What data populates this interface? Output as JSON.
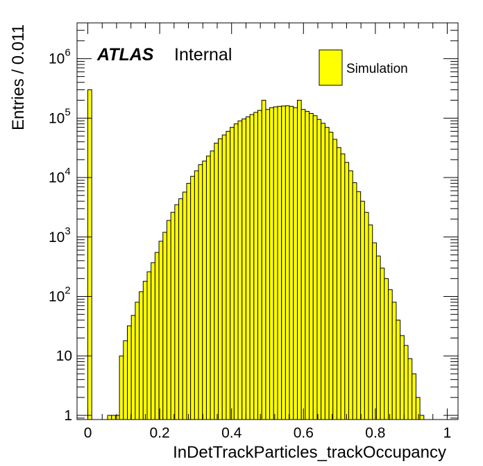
{
  "chart_data": {
    "type": "bar",
    "xlabel": "InDetTrackParticles_trackOccupancy",
    "ylabel": "Entries / 0.011",
    "xlim": [
      -0.03,
      1.03
    ],
    "ylim": [
      0.85,
      4000000
    ],
    "yscale": "log",
    "grid": false,
    "legend_position": "top-right",
    "experiment_label": "ATLAS",
    "experiment_status": "Internal",
    "series": [
      {
        "name": "Simulation",
        "color": "#ffff00",
        "edgecolor": "#000000",
        "bin_width": 0.011,
        "x": [
          0.0,
          0.055,
          0.066,
          0.077,
          0.088,
          0.099,
          0.11,
          0.121,
          0.132,
          0.143,
          0.154,
          0.165,
          0.176,
          0.187,
          0.198,
          0.209,
          0.22,
          0.231,
          0.242,
          0.253,
          0.264,
          0.275,
          0.286,
          0.297,
          0.308,
          0.319,
          0.33,
          0.341,
          0.352,
          0.363,
          0.374,
          0.385,
          0.396,
          0.407,
          0.418,
          0.429,
          0.44,
          0.451,
          0.462,
          0.473,
          0.484,
          0.495,
          0.506,
          0.517,
          0.528,
          0.539,
          0.55,
          0.561,
          0.572,
          0.583,
          0.594,
          0.605,
          0.616,
          0.627,
          0.638,
          0.649,
          0.66,
          0.671,
          0.682,
          0.693,
          0.704,
          0.715,
          0.726,
          0.737,
          0.748,
          0.759,
          0.77,
          0.781,
          0.792,
          0.803,
          0.814,
          0.825,
          0.836,
          0.847,
          0.858,
          0.869,
          0.88,
          0.891,
          0.902,
          0.913,
          0.924
        ],
        "values": [
          300000,
          1,
          1,
          1,
          10,
          18,
          32,
          48,
          80,
          120,
          180,
          260,
          370,
          550,
          850,
          1200,
          1900,
          2600,
          3500,
          4400,
          5700,
          8000,
          10500,
          13000,
          16500,
          19000,
          23000,
          28000,
          38000,
          45000,
          52000,
          60000,
          70000,
          80000,
          90000,
          97000,
          105000,
          115000,
          125000,
          135000,
          200000,
          140000,
          150000,
          155000,
          158000,
          160000,
          161000,
          158000,
          150000,
          200000,
          140000,
          130000,
          120000,
          110000,
          95000,
          82000,
          70000,
          58000,
          44000,
          32000,
          25000,
          18000,
          13000,
          8200,
          5800,
          4000,
          2600,
          1600,
          800,
          480,
          300,
          200,
          130,
          80,
          40,
          22,
          15,
          9,
          5,
          2,
          1
        ]
      }
    ],
    "xticks": [
      0,
      0.2,
      0.4,
      0.6,
      0.8,
      1
    ],
    "xtick_labels": [
      "0",
      "0.2",
      "0.4",
      "0.6",
      "0.8",
      "1"
    ],
    "yticks": [
      1,
      10,
      100,
      1000,
      10000,
      100000,
      1000000
    ],
    "ytick_labels": [
      {
        "base": "1",
        "exp": ""
      },
      {
        "base": "10",
        "exp": ""
      },
      {
        "base": "10",
        "exp": "2"
      },
      {
        "base": "10",
        "exp": "3"
      },
      {
        "base": "10",
        "exp": "4"
      },
      {
        "base": "10",
        "exp": "5"
      },
      {
        "base": "10",
        "exp": "6"
      }
    ]
  }
}
